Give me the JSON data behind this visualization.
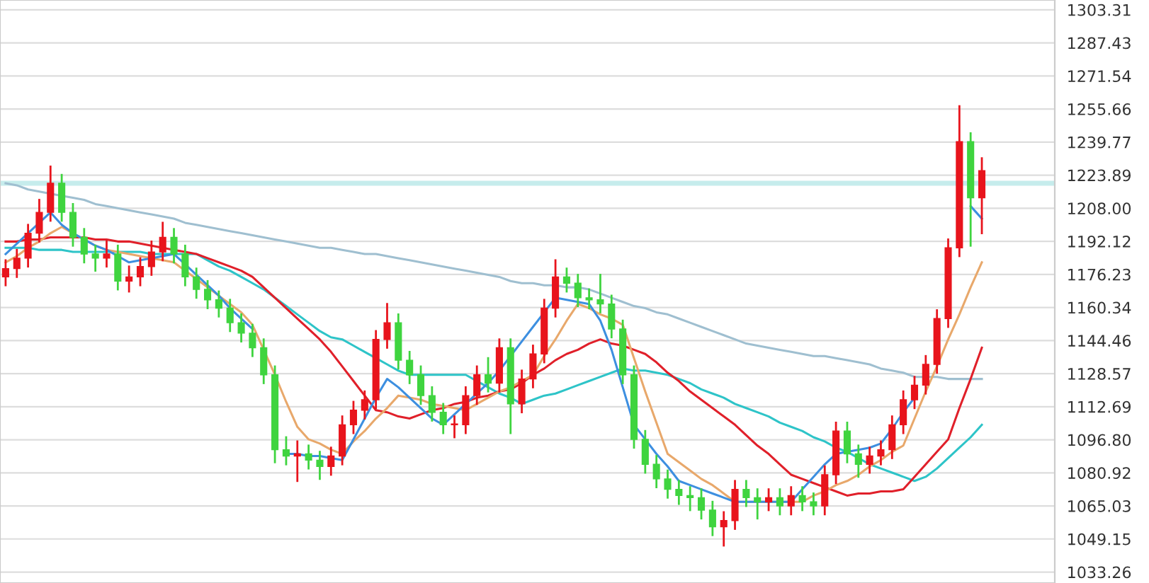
{
  "chart_data": {
    "type": "candlestick",
    "categories": [
      null,
      null,
      null,
      null,
      null,
      null,
      null,
      null,
      null,
      null,
      null,
      null,
      null,
      null,
      null,
      null,
      null,
      null,
      null,
      null,
      null,
      null,
      null,
      null,
      null,
      null,
      null,
      null,
      null,
      null,
      null,
      null,
      null,
      null,
      null,
      null,
      null,
      null,
      null,
      null,
      null,
      null,
      null,
      null,
      null,
      null,
      null,
      null,
      null,
      null,
      null,
      null,
      null,
      null,
      null,
      null,
      null,
      null,
      null,
      null,
      null,
      null,
      null,
      null,
      null,
      null,
      null,
      null,
      null,
      null,
      null,
      null,
      null,
      null,
      null,
      null,
      null,
      null,
      null,
      null,
      null,
      null,
      null,
      null,
      null,
      null,
      null,
      null
    ],
    "ohlc": [
      [
        1175,
        1183,
        1171,
        1179
      ],
      [
        1179,
        1188,
        1175,
        1184
      ],
      [
        1184,
        1200,
        1180,
        1196
      ],
      [
        1196,
        1212,
        1192,
        1206
      ],
      [
        1206,
        1228,
        1202,
        1220
      ],
      [
        1220,
        1224,
        1202,
        1206
      ],
      [
        1206,
        1210,
        1190,
        1194
      ],
      [
        1194,
        1198,
        1182,
        1186
      ],
      [
        1186,
        1190,
        1178,
        1184
      ],
      [
        1184,
        1192,
        1180,
        1186
      ],
      [
        1186,
        1190,
        1169,
        1173
      ],
      [
        1173,
        1180,
        1168,
        1175
      ],
      [
        1175,
        1184,
        1171,
        1180
      ],
      [
        1180,
        1192,
        1176,
        1187
      ],
      [
        1187,
        1201,
        1183,
        1194
      ],
      [
        1194,
        1198,
        1182,
        1186
      ],
      [
        1186,
        1190,
        1171,
        1175
      ],
      [
        1175,
        1179,
        1165,
        1169
      ],
      [
        1169,
        1173,
        1160,
        1164
      ],
      [
        1164,
        1168,
        1156,
        1160
      ],
      [
        1160,
        1164,
        1149,
        1153
      ],
      [
        1153,
        1157,
        1144,
        1148
      ],
      [
        1148,
        1152,
        1137,
        1141
      ],
      [
        1141,
        1145,
        1124,
        1128
      ],
      [
        1128,
        1132,
        1086,
        1092
      ],
      [
        1092,
        1098,
        1085,
        1089
      ],
      [
        1089,
        1096,
        1077,
        1090
      ],
      [
        1090,
        1094,
        1083,
        1087
      ],
      [
        1087,
        1091,
        1078,
        1084
      ],
      [
        1084,
        1093,
        1080,
        1089
      ],
      [
        1089,
        1108,
        1085,
        1104
      ],
      [
        1104,
        1115,
        1100,
        1111
      ],
      [
        1111,
        1120,
        1107,
        1116
      ],
      [
        1116,
        1149,
        1112,
        1145
      ],
      [
        1145,
        1162,
        1141,
        1153
      ],
      [
        1153,
        1157,
        1131,
        1135
      ],
      [
        1135,
        1139,
        1124,
        1128
      ],
      [
        1128,
        1132,
        1114,
        1118
      ],
      [
        1118,
        1122,
        1106,
        1110
      ],
      [
        1110,
        1114,
        1100,
        1104
      ],
      [
        1104,
        1108,
        1098,
        1104
      ],
      [
        1104,
        1122,
        1100,
        1118
      ],
      [
        1118,
        1132,
        1114,
        1128
      ],
      [
        1128,
        1136,
        1120,
        1124
      ],
      [
        1124,
        1145,
        1120,
        1141
      ],
      [
        1141,
        1145,
        1100,
        1114
      ],
      [
        1114,
        1130,
        1110,
        1126
      ],
      [
        1126,
        1142,
        1122,
        1138
      ],
      [
        1138,
        1164,
        1134,
        1160
      ],
      [
        1160,
        1183,
        1156,
        1175
      ],
      [
        1175,
        1179,
        1168,
        1172
      ],
      [
        1172,
        1176,
        1161,
        1165
      ],
      [
        1165,
        1169,
        1160,
        1164
      ],
      [
        1164,
        1176,
        1158,
        1162
      ],
      [
        1162,
        1166,
        1146,
        1150
      ],
      [
        1150,
        1154,
        1124,
        1128
      ],
      [
        1128,
        1132,
        1093,
        1097
      ],
      [
        1097,
        1101,
        1081,
        1085
      ],
      [
        1085,
        1089,
        1074,
        1078
      ],
      [
        1078,
        1082,
        1069,
        1073
      ],
      [
        1073,
        1077,
        1066,
        1070
      ],
      [
        1070,
        1074,
        1063,
        1069
      ],
      [
        1069,
        1073,
        1059,
        1063
      ],
      [
        1063,
        1067,
        1051,
        1055
      ],
      [
        1055,
        1062,
        1046,
        1058
      ],
      [
        1058,
        1077,
        1054,
        1073
      ],
      [
        1073,
        1077,
        1065,
        1069
      ],
      [
        1069,
        1073,
        1059,
        1067
      ],
      [
        1067,
        1073,
        1063,
        1069
      ],
      [
        1069,
        1073,
        1061,
        1065
      ],
      [
        1065,
        1074,
        1061,
        1070
      ],
      [
        1070,
        1074,
        1063,
        1067
      ],
      [
        1067,
        1071,
        1061,
        1065
      ],
      [
        1065,
        1084,
        1061,
        1080
      ],
      [
        1080,
        1105,
        1076,
        1101
      ],
      [
        1101,
        1105,
        1086,
        1090
      ],
      [
        1090,
        1094,
        1079,
        1085
      ],
      [
        1085,
        1093,
        1081,
        1089
      ],
      [
        1089,
        1096,
        1085,
        1092
      ],
      [
        1092,
        1108,
        1088,
        1104
      ],
      [
        1104,
        1120,
        1100,
        1116
      ],
      [
        1116,
        1127,
        1112,
        1123
      ],
      [
        1123,
        1137,
        1119,
        1133
      ],
      [
        1133,
        1159,
        1129,
        1155
      ],
      [
        1155,
        1193,
        1151,
        1189
      ],
      [
        1189,
        1257,
        1185,
        1240
      ],
      [
        1240,
        1244,
        1190,
        1213
      ],
      [
        1213,
        1232,
        1196,
        1226
      ]
    ],
    "series": [
      {
        "type": "line",
        "color": "#9fbfd0",
        "values": [
          1220,
          1219,
          1217,
          1216,
          1215,
          1214,
          1213,
          1212,
          1210,
          1209,
          1208,
          1207,
          1206,
          1205,
          1204,
          1203,
          1201,
          1200,
          1199,
          1198,
          1197,
          1196,
          1195,
          1194,
          1193,
          1192,
          1191,
          1190,
          1189,
          1189,
          1188,
          1187,
          1186,
          1186,
          1185,
          1184,
          1183,
          1182,
          1181,
          1180,
          1179,
          1178,
          1177,
          1176,
          1175,
          1173,
          1172,
          1172,
          1171,
          1171,
          1170,
          1170,
          1169,
          1167,
          1165,
          1163,
          1161,
          1160,
          1158,
          1157,
          1155,
          1153,
          1151,
          1149,
          1147,
          1145,
          1143,
          1142,
          1141,
          1140,
          1139,
          1138,
          1137,
          1137,
          1136,
          1135,
          1134,
          1133,
          1131,
          1130,
          1129,
          1127,
          1127,
          1127,
          1126,
          1126,
          1126,
          1126
        ]
      },
      {
        "type": "line",
        "color": "#2ec4c8",
        "values": [
          1189,
          1189,
          1189,
          1188,
          1188,
          1188,
          1187,
          1187,
          1187,
          1187,
          1187,
          1187,
          1187,
          1186,
          1186,
          1186,
          1186,
          1186,
          1183,
          1180,
          1178,
          1175,
          1172,
          1169,
          1165,
          1161,
          1157,
          1153,
          1149,
          1146,
          1145,
          1142,
          1139,
          1136,
          1133,
          1130,
          1128,
          1128,
          1128,
          1128,
          1128,
          1128,
          1125,
          1122,
          1119,
          1117,
          1114,
          1116,
          1118,
          1119,
          1121,
          1123,
          1125,
          1127,
          1129,
          1131,
          1130,
          1130,
          1129,
          1128,
          1126,
          1124,
          1121,
          1119,
          1117,
          1114,
          1112,
          1110,
          1108,
          1105,
          1103,
          1101,
          1098,
          1096,
          1093,
          1091,
          1088,
          1085,
          1083,
          1081,
          1079,
          1077,
          1079,
          1083,
          1088,
          1093,
          1098,
          1104
        ]
      },
      {
        "type": "line",
        "color": "#e0202a",
        "values": [
          1192,
          1192,
          1193,
          1193,
          1194,
          1194,
          1194,
          1194,
          1193,
          1193,
          1192,
          1192,
          1191,
          1190,
          1189,
          1188,
          1187,
          1186,
          1184,
          1182,
          1180,
          1178,
          1175,
          1170,
          1165,
          1160,
          1155,
          1150,
          1145,
          1139,
          1132,
          1125,
          1118,
          1111,
          1110,
          1108,
          1107,
          1109,
          1111,
          1112,
          1114,
          1115,
          1117,
          1118,
          1120,
          1121,
          1124,
          1128,
          1131,
          1135,
          1138,
          1140,
          1143,
          1145,
          1143,
          1142,
          1140,
          1138,
          1134,
          1129,
          1125,
          1120,
          1116,
          1112,
          1108,
          1104,
          1099,
          1094,
          1090,
          1085,
          1080,
          1078,
          1076,
          1074,
          1072,
          1070,
          1071,
          1071,
          1072,
          1072,
          1073,
          1079,
          1085,
          1091,
          1097,
          1112,
          1126,
          1141
        ]
      },
      {
        "type": "line",
        "color": "#e8a86b",
        "values": [
          1182,
          1185,
          1189,
          1192,
          1196,
          1199,
          1196,
          1193,
          1190,
          1188,
          1187,
          1186,
          1185,
          1184,
          1183,
          1182,
          1178,
          1174,
          1170,
          1166,
          1162,
          1158,
          1152,
          1140,
          1128,
          1115,
          1103,
          1097,
          1095,
          1092,
          1090,
          1096,
          1101,
          1107,
          1112,
          1118,
          1117,
          1116,
          1114,
          1113,
          1112,
          1111,
          1114,
          1117,
          1120,
          1122,
          1125,
          1128,
          1137,
          1145,
          1154,
          1162,
          1160,
          1157,
          1155,
          1152,
          1136,
          1120,
          1105,
          1090,
          1086,
          1082,
          1078,
          1075,
          1071,
          1067,
          1067,
          1067,
          1067,
          1067,
          1067,
          1067,
          1070,
          1072,
          1075,
          1077,
          1080,
          1084,
          1087,
          1091,
          1094,
          1107,
          1120,
          1132,
          1145,
          1157,
          1170,
          1182
        ]
      },
      {
        "type": "line",
        "color": "#3d8fe0",
        "values": [
          1186,
          1191,
          1196,
          1201,
          1206,
          1200,
          1196,
          1193,
          1190,
          1188,
          1185,
          1182,
          1183,
          1184,
          1185,
          1186,
          1181,
          1176,
          1171,
          1166,
          1160,
          1155,
          1150,
          null,
          null,
          1090,
          1090,
          1089,
          1089,
          1088,
          1087,
          1097,
          1107,
          1117,
          1126,
          1122,
          1117,
          1112,
          1107,
          1104,
          1109,
          1114,
          1119,
          1124,
          1130,
          1137,
          1144,
          1151,
          1158,
          1165,
          1164,
          1163,
          1162,
          1154,
          1140,
          1122,
          1104,
          1097,
          1090,
          1084,
          1077,
          1075,
          1073,
          1071,
          1069,
          1067,
          1067,
          1067,
          1067,
          1067,
          1067,
          1073,
          1079,
          1085,
          1090,
          1091,
          1092,
          1093,
          1095,
          1102,
          1110,
          1117,
          null,
          null,
          null,
          null,
          1209,
          1203
        ]
      }
    ],
    "ref_lines": [
      {
        "axis": "y",
        "value": 1220,
        "color": "#c6ecec"
      }
    ],
    "ylim": [
      1028,
      1308
    ],
    "yticks": [
      1303.31,
      1287.43,
      1271.54,
      1255.66,
      1239.77,
      1223.89,
      {
        "value": 1208,
        "label": "1208.00"
      },
      1192.12,
      1176.23,
      1160.34,
      1144.46,
      1128.57,
      1112.69,
      {
        "value": 1096.8,
        "label": "1096.80"
      },
      1080.92,
      1065.03,
      1049.15,
      1033.26
    ],
    "tick_labels": "y",
    "grid": "y"
  }
}
